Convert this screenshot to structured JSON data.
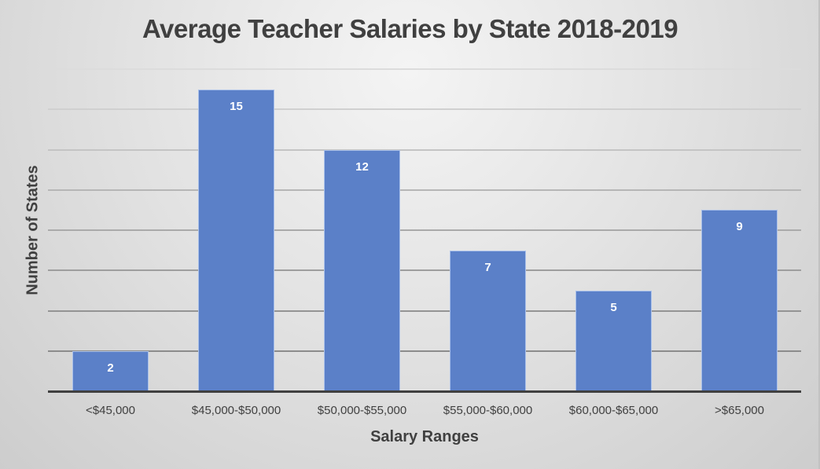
{
  "chart_data": {
    "type": "bar",
    "title": "Average Teacher Salaries by State 2018-2019",
    "xlabel": "Salary Ranges",
    "ylabel": "Number of States",
    "categories": [
      "<$45,000",
      "$45,000-$50,000",
      "$50,000-$55,000",
      "$55,000-$60,000",
      "$60,000-$65,000",
      ">$65,000"
    ],
    "values": [
      2,
      15,
      12,
      7,
      5,
      9
    ],
    "data_labels": [
      "2",
      "15",
      "12",
      "7",
      "5",
      "9"
    ],
    "ylim": [
      0,
      16
    ],
    "y_gridline_step": 2,
    "grid": true,
    "y_tick_labels_visible": false,
    "legend": "none",
    "bar_color": "#5b80c8"
  }
}
